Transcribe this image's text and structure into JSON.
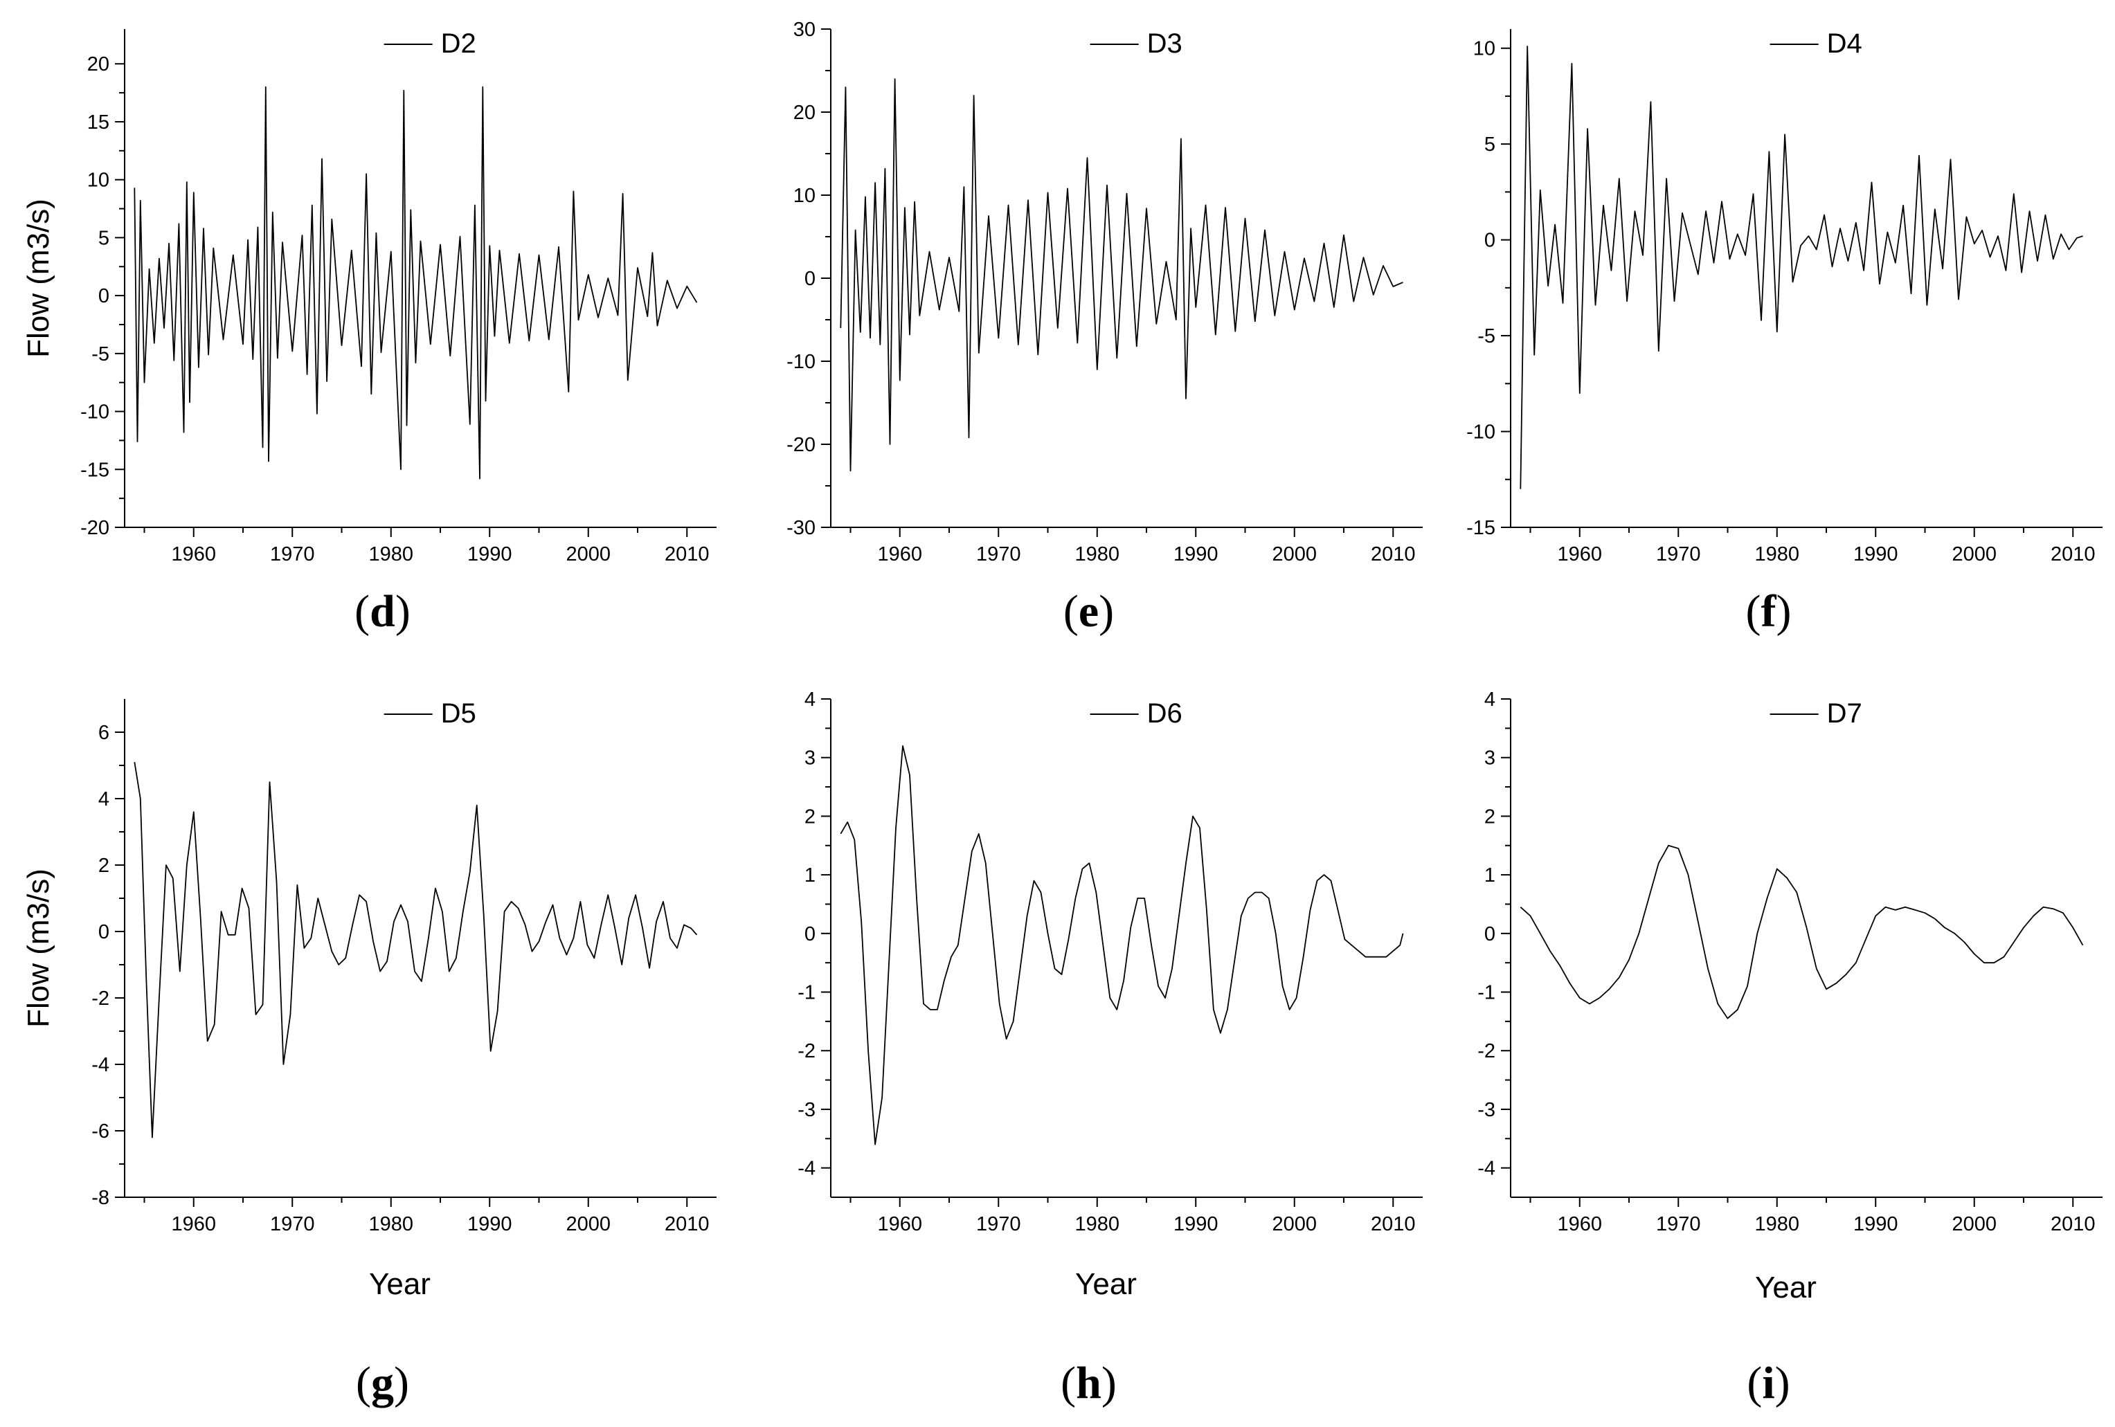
{
  "figure": {
    "panels": [
      {
        "key": "d",
        "label": "d",
        "ylabel": "Flow (m3/s)",
        "xlabel": ""
      },
      {
        "key": "e",
        "label": "e",
        "ylabel": "",
        "xlabel": ""
      },
      {
        "key": "f",
        "label": "f",
        "ylabel": "",
        "xlabel": ""
      },
      {
        "key": "g",
        "label": "g",
        "ylabel": "Flow (m3/s)",
        "xlabel": "Year"
      },
      {
        "key": "h",
        "label": "h",
        "ylabel": "",
        "xlabel": "Year"
      },
      {
        "key": "i",
        "label": "i",
        "ylabel": "",
        "xlabel": "Year"
      }
    ]
  },
  "chart_data": [
    {
      "panel": "d",
      "type": "line",
      "series_name": "D2",
      "xlim": [
        1953,
        2013
      ],
      "ylim": [
        -20,
        23
      ],
      "xticks": [
        1960,
        1970,
        1980,
        1990,
        2000,
        2010
      ],
      "yticks": [
        -20,
        -15,
        -10,
        -5,
        0,
        5,
        10,
        15,
        20
      ],
      "legend_position": "top-center",
      "x": [
        1954.0,
        1954.3,
        1954.6,
        1955,
        1955.5,
        1956,
        1956.5,
        1957,
        1957.5,
        1958,
        1958.5,
        1959,
        1959.3,
        1959.6,
        1960,
        1960.5,
        1961,
        1961.5,
        1962,
        1963,
        1964,
        1965,
        1965.5,
        1966,
        1966.5,
        1967,
        1967.3,
        1967.6,
        1968,
        1968.5,
        1969,
        1970,
        1971,
        1971.5,
        1972,
        1972.5,
        1973,
        1973.5,
        1974,
        1975,
        1976,
        1977,
        1977.5,
        1978,
        1978.5,
        1979,
        1980,
        1981,
        1981.3,
        1981.6,
        1982,
        1982.5,
        1983,
        1984,
        1985,
        1986,
        1987,
        1988,
        1988.5,
        1989,
        1989.3,
        1989.6,
        1990,
        1990.5,
        1991,
        1992,
        1993,
        1994,
        1995,
        1996,
        1997,
        1998,
        1998.5,
        1999,
        2000,
        2001,
        2002,
        2003,
        2003.5,
        2004,
        2005,
        2006,
        2006.5,
        2007,
        2008,
        2009,
        2010,
        2011
      ],
      "values": [
        9.3,
        -12.6,
        8.2,
        -7.5,
        2.3,
        -4.1,
        3.2,
        -2.8,
        4.5,
        -5.6,
        6.2,
        -11.8,
        9.8,
        -9.2,
        8.9,
        -6.2,
        5.8,
        -5.1,
        4.1,
        -3.8,
        3.5,
        -4.2,
        4.8,
        -5.5,
        5.9,
        -13.1,
        18.0,
        -14.3,
        7.2,
        -5.4,
        4.6,
        -4.8,
        5.2,
        -6.8,
        7.8,
        -10.2,
        11.8,
        -7.4,
        6.6,
        -4.3,
        3.9,
        -6.1,
        10.5,
        -8.5,
        5.4,
        -4.9,
        3.8,
        -15.0,
        17.7,
        -11.2,
        7.4,
        -5.8,
        4.7,
        -4.2,
        4.4,
        -5.2,
        5.1,
        -11.1,
        7.8,
        -15.8,
        18.0,
        -9.1,
        4.3,
        -3.5,
        3.9,
        -4.1,
        3.6,
        -3.9,
        3.5,
        -3.8,
        4.2,
        -8.3,
        9.0,
        -2.1,
        1.8,
        -1.9,
        1.5,
        -1.7,
        8.8,
        -7.3,
        2.4,
        -1.8,
        3.7,
        -2.6,
        1.3,
        -1.1,
        0.8,
        -0.6
      ]
    },
    {
      "panel": "e",
      "type": "line",
      "series_name": "D3",
      "xlim": [
        1953,
        2013
      ],
      "ylim": [
        -30,
        30
      ],
      "xticks": [
        1960,
        1970,
        1980,
        1990,
        2000,
        2010
      ],
      "yticks": [
        -30,
        -20,
        -10,
        0,
        10,
        20,
        30
      ],
      "legend_position": "top-center",
      "x": [
        1954.0,
        1954.5,
        1955,
        1955.5,
        1956,
        1956.5,
        1957,
        1957.5,
        1958,
        1958.5,
        1959,
        1959.5,
        1960,
        1960.5,
        1961,
        1961.5,
        1962,
        1963,
        1964,
        1965,
        1966,
        1966.5,
        1967,
        1967.5,
        1968,
        1969,
        1970,
        1971,
        1972,
        1973,
        1974,
        1975,
        1976,
        1977,
        1978,
        1979,
        1980,
        1981,
        1982,
        1983,
        1984,
        1985,
        1986,
        1987,
        1988,
        1988.5,
        1989,
        1989.5,
        1990,
        1991,
        1992,
        1993,
        1994,
        1995,
        1996,
        1997,
        1998,
        1999,
        2000,
        2001,
        2002,
        2003,
        2004,
        2005,
        2006,
        2007,
        2008,
        2009,
        2010,
        2011
      ],
      "values": [
        -6.0,
        23.0,
        -23.2,
        5.8,
        -6.5,
        9.8,
        -7.2,
        11.5,
        -8.0,
        13.2,
        -20.0,
        24.0,
        -12.3,
        8.5,
        -6.8,
        9.2,
        -4.5,
        3.2,
        -3.8,
        2.5,
        -4.0,
        11.0,
        -19.2,
        22.0,
        -9.0,
        7.5,
        -7.2,
        8.8,
        -8.0,
        9.4,
        -9.2,
        10.3,
        -6.0,
        10.8,
        -7.8,
        14.5,
        -11.0,
        11.2,
        -9.6,
        10.2,
        -8.2,
        8.4,
        -5.5,
        2.0,
        -5.0,
        16.8,
        -14.5,
        6.0,
        -3.5,
        8.8,
        -6.8,
        8.5,
        -6.4,
        7.2,
        -5.2,
        5.8,
        -4.5,
        3.2,
        -3.8,
        2.4,
        -2.8,
        4.2,
        -3.5,
        5.2,
        -2.8,
        2.5,
        -2.0,
        1.5,
        -1.0,
        -0.5
      ]
    },
    {
      "panel": "f",
      "type": "line",
      "series_name": "D4",
      "xlim": [
        1953,
        2013
      ],
      "ylim": [
        -15,
        11
      ],
      "xticks": [
        1960,
        1970,
        1980,
        1990,
        2000,
        2010
      ],
      "yticks": [
        -15,
        -10,
        -5,
        0,
        5,
        10
      ],
      "legend_position": "top-center",
      "x": [
        1954.0,
        1954.7,
        1955.4,
        1956,
        1956.8,
        1957.5,
        1958.3,
        1959.2,
        1960,
        1960.8,
        1961.6,
        1962.4,
        1963.2,
        1964,
        1964.8,
        1965.6,
        1966.4,
        1967.2,
        1968,
        1968.8,
        1969.6,
        1970.4,
        1971.2,
        1972,
        1972.8,
        1973.6,
        1974.4,
        1975.2,
        1976,
        1976.8,
        1977.6,
        1978.4,
        1979.2,
        1980,
        1980.8,
        1981.6,
        1982.4,
        1983.2,
        1984,
        1984.8,
        1985.6,
        1986.4,
        1987.2,
        1988,
        1988.8,
        1989.6,
        1990.4,
        1991.2,
        1992,
        1992.8,
        1993.6,
        1994.4,
        1995.2,
        1996,
        1996.8,
        1997.6,
        1998.4,
        1999.2,
        2000,
        2000.8,
        2001.6,
        2002.4,
        2003.2,
        2004,
        2004.8,
        2005.6,
        2006.4,
        2007.2,
        2008,
        2008.8,
        2009.6,
        2010.4,
        2011
      ],
      "values": [
        -13.0,
        10.1,
        -6.0,
        2.6,
        -2.4,
        0.8,
        -3.3,
        9.2,
        -8.0,
        5.8,
        -3.4,
        1.8,
        -1.6,
        3.2,
        -3.2,
        1.5,
        -0.8,
        7.2,
        -5.8,
        3.2,
        -3.2,
        1.4,
        -0.2,
        -1.8,
        1.5,
        -1.2,
        2.0,
        -1.0,
        0.3,
        -0.8,
        2.4,
        -4.2,
        4.6,
        -4.8,
        5.5,
        -2.2,
        -0.3,
        0.2,
        -0.5,
        1.3,
        -1.4,
        0.6,
        -1.1,
        0.9,
        -1.6,
        3.0,
        -2.3,
        0.4,
        -1.2,
        1.8,
        -2.8,
        4.4,
        -3.4,
        1.6,
        -1.5,
        4.2,
        -3.1,
        1.2,
        -0.2,
        0.5,
        -0.9,
        0.2,
        -1.6,
        2.4,
        -1.7,
        1.5,
        -1.1,
        1.3,
        -1.0,
        0.3,
        -0.5,
        0.1,
        0.2
      ]
    },
    {
      "panel": "g",
      "type": "line",
      "series_name": "D5",
      "xlim": [
        1953,
        2013
      ],
      "ylim": [
        -8,
        7
      ],
      "xticks": [
        1960,
        1970,
        1980,
        1990,
        2000,
        2010
      ],
      "yticks": [
        -8,
        -6,
        -4,
        -2,
        0,
        2,
        4,
        6
      ],
      "legend_position": "top-center",
      "x": [
        1954.0,
        1954.6,
        1955.2,
        1955.8,
        1956.5,
        1957.2,
        1957.9,
        1958.6,
        1959.3,
        1960,
        1960.7,
        1961.4,
        1962.1,
        1962.8,
        1963.5,
        1964.2,
        1964.9,
        1965.6,
        1966.3,
        1967,
        1967.7,
        1968.4,
        1969.1,
        1969.8,
        1970.5,
        1971.2,
        1971.9,
        1972.6,
        1973.3,
        1974,
        1974.7,
        1975.4,
        1976.1,
        1976.8,
        1977.5,
        1978.2,
        1978.9,
        1979.6,
        1980.3,
        1981,
        1981.7,
        1982.4,
        1983.1,
        1983.8,
        1984.5,
        1985.2,
        1985.9,
        1986.6,
        1987.3,
        1988,
        1988.7,
        1989.4,
        1990.1,
        1990.8,
        1991.5,
        1992.2,
        1992.9,
        1993.6,
        1994.3,
        1995,
        1995.7,
        1996.4,
        1997.1,
        1997.8,
        1998.5,
        1999.2,
        1999.9,
        2000.6,
        2001.3,
        2002,
        2002.7,
        2003.4,
        2004.1,
        2004.8,
        2005.5,
        2006.2,
        2006.9,
        2007.6,
        2008.3,
        2009,
        2009.7,
        2010.4,
        2011
      ],
      "values": [
        5.1,
        4.0,
        -1.5,
        -6.2,
        -2.0,
        2.0,
        1.6,
        -1.2,
        2.0,
        3.6,
        0.4,
        -3.3,
        -2.8,
        0.6,
        -0.1,
        -0.1,
        1.3,
        0.7,
        -2.5,
        -2.2,
        4.5,
        1.5,
        -4.0,
        -2.5,
        1.4,
        -0.5,
        -0.2,
        1.0,
        0.2,
        -0.6,
        -1.0,
        -0.8,
        0.2,
        1.1,
        0.9,
        -0.3,
        -1.2,
        -0.9,
        0.3,
        0.8,
        0.3,
        -1.2,
        -1.5,
        -0.2,
        1.3,
        0.6,
        -1.2,
        -0.8,
        0.6,
        1.8,
        3.8,
        0.5,
        -3.6,
        -2.4,
        0.6,
        0.9,
        0.7,
        0.2,
        -0.6,
        -0.3,
        0.3,
        0.8,
        -0.2,
        -0.7,
        -0.2,
        0.9,
        -0.4,
        -0.8,
        0.2,
        1.1,
        0.1,
        -1.0,
        0.4,
        1.1,
        0.1,
        -1.1,
        0.3,
        0.9,
        -0.2,
        -0.5,
        0.2,
        0.1,
        -0.1
      ]
    },
    {
      "panel": "h",
      "type": "line",
      "series_name": "D6",
      "xlim": [
        1953,
        2013
      ],
      "ylim": [
        -4.5,
        4
      ],
      "xticks": [
        1960,
        1970,
        1980,
        1990,
        2000,
        2010
      ],
      "yticks": [
        -4,
        -3,
        -2,
        -1,
        0,
        1,
        2,
        3,
        4
      ],
      "legend_position": "top-center",
      "x": [
        1954.0,
        1954.7,
        1955.4,
        1956.1,
        1956.8,
        1957.5,
        1958.2,
        1958.9,
        1959.6,
        1960.3,
        1961,
        1961.7,
        1962.4,
        1963.1,
        1963.8,
        1964.5,
        1965.2,
        1965.9,
        1966.6,
        1967.3,
        1968,
        1968.7,
        1969.4,
        1970.1,
        1970.8,
        1971.5,
        1972.2,
        1972.9,
        1973.6,
        1974.3,
        1975,
        1975.7,
        1976.4,
        1977.1,
        1977.8,
        1978.5,
        1979.2,
        1979.9,
        1980.6,
        1981.3,
        1982,
        1982.7,
        1983.4,
        1984.1,
        1984.8,
        1985.5,
        1986.2,
        1986.9,
        1987.6,
        1988.3,
        1989,
        1989.7,
        1990.4,
        1991.1,
        1991.8,
        1992.5,
        1993.2,
        1993.9,
        1994.6,
        1995.3,
        1996,
        1996.7,
        1997.4,
        1998.1,
        1998.8,
        1999.5,
        2000.2,
        2000.9,
        2001.6,
        2002.3,
        2003,
        2003.7,
        2004.4,
        2005.1,
        2005.8,
        2006.5,
        2007.2,
        2007.9,
        2008.6,
        2009.3,
        2010,
        2010.7,
        2011
      ],
      "values": [
        1.7,
        1.9,
        1.6,
        0.2,
        -2.0,
        -3.6,
        -2.8,
        -0.5,
        1.8,
        3.2,
        2.7,
        0.6,
        -1.2,
        -1.3,
        -1.3,
        -0.8,
        -0.4,
        -0.2,
        0.6,
        1.4,
        1.7,
        1.2,
        0.0,
        -1.2,
        -1.8,
        -1.5,
        -0.6,
        0.3,
        0.9,
        0.7,
        0.0,
        -0.6,
        -0.7,
        -0.1,
        0.6,
        1.1,
        1.2,
        0.7,
        -0.2,
        -1.1,
        -1.3,
        -0.8,
        0.1,
        0.6,
        0.6,
        -0.2,
        -0.9,
        -1.1,
        -0.6,
        0.3,
        1.2,
        2.0,
        1.8,
        0.4,
        -1.3,
        -1.7,
        -1.3,
        -0.5,
        0.3,
        0.6,
        0.7,
        0.7,
        0.6,
        0.0,
        -0.9,
        -1.3,
        -1.1,
        -0.4,
        0.4,
        0.9,
        1.0,
        0.9,
        0.4,
        -0.1,
        -0.2,
        -0.3,
        -0.4,
        -0.4,
        -0.4,
        -0.4,
        -0.3,
        -0.2,
        0.0
      ]
    },
    {
      "panel": "i",
      "type": "line",
      "series_name": "D7",
      "xlim": [
        1953,
        2013
      ],
      "ylim": [
        -4.5,
        4
      ],
      "xticks": [
        1960,
        1970,
        1980,
        1990,
        2000,
        2010
      ],
      "yticks": [
        -4,
        -3,
        -2,
        -1,
        0,
        1,
        2,
        3,
        4
      ],
      "legend_position": "top-center",
      "x": [
        1954,
        1955,
        1956,
        1957,
        1958,
        1959,
        1960,
        1961,
        1962,
        1963,
        1964,
        1965,
        1966,
        1967,
        1968,
        1969,
        1970,
        1971,
        1972,
        1973,
        1974,
        1975,
        1976,
        1977,
        1978,
        1979,
        1980,
        1981,
        1982,
        1983,
        1984,
        1985,
        1986,
        1987,
        1988,
        1989,
        1990,
        1991,
        1992,
        1993,
        1994,
        1995,
        1996,
        1997,
        1998,
        1999,
        2000,
        2001,
        2002,
        2003,
        2004,
        2005,
        2006,
        2007,
        2008,
        2009,
        2010,
        2011
      ],
      "values": [
        0.45,
        0.3,
        0.0,
        -0.3,
        -0.55,
        -0.85,
        -1.1,
        -1.2,
        -1.1,
        -0.95,
        -0.75,
        -0.45,
        0.0,
        0.6,
        1.2,
        1.5,
        1.45,
        1.0,
        0.2,
        -0.6,
        -1.2,
        -1.45,
        -1.3,
        -0.9,
        0.0,
        0.6,
        1.1,
        0.95,
        0.7,
        0.1,
        -0.6,
        -0.95,
        -0.85,
        -0.7,
        -0.5,
        -0.1,
        0.3,
        0.45,
        0.4,
        0.45,
        0.4,
        0.35,
        0.25,
        0.1,
        0.0,
        -0.15,
        -0.35,
        -0.5,
        -0.5,
        -0.4,
        -0.15,
        0.1,
        0.3,
        0.45,
        0.42,
        0.35,
        0.1,
        -0.2
      ]
    }
  ]
}
